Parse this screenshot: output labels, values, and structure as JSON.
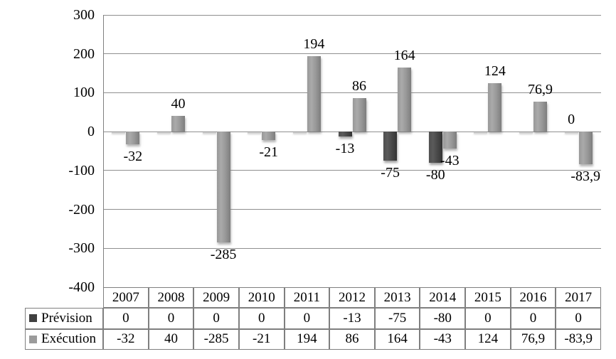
{
  "chart_data": {
    "type": "bar",
    "title": "",
    "xlabel": "",
    "ylabel": "",
    "categories": [
      "2007",
      "2008",
      "2009",
      "2010",
      "2011",
      "2012",
      "2013",
      "2014",
      "2015",
      "2016",
      "2017"
    ],
    "series": [
      {
        "name": "Prévision",
        "values": [
          0,
          0,
          0,
          0,
          0,
          -13,
          -75,
          -80,
          0,
          0,
          0
        ],
        "display_values": [
          "0",
          "0",
          "0",
          "0",
          "0",
          "-13",
          "-75",
          "-80",
          "0",
          "0",
          "0"
        ],
        "chart_labels": [
          null,
          null,
          null,
          null,
          null,
          "-13",
          "-75",
          "-80",
          null,
          null,
          "0"
        ]
      },
      {
        "name": "Exécution",
        "values": [
          -32,
          40,
          -285,
          -21,
          194,
          86,
          164,
          -43,
          124,
          76.9,
          -83.9
        ],
        "display_values": [
          "-32",
          "40",
          "-285",
          "-21",
          "194",
          "86",
          "164",
          "-43",
          "124",
          "76,9",
          "-83,9"
        ],
        "chart_labels": [
          "-32",
          "40",
          "-285",
          "-21",
          "194",
          "86",
          "164",
          "-43",
          "124",
          "76,9",
          "-83,9"
        ]
      }
    ],
    "ylim": [
      -400,
      300
    ],
    "ytick_interval": 100,
    "yticks": [
      "300",
      "200",
      "100",
      "0",
      "-100",
      "-200",
      "-300",
      "-400"
    ],
    "grid": "horizontal",
    "legend_position": "table-left"
  },
  "colors": {
    "prevision_bar": "#464646",
    "execution_bar": "#9c9c9c",
    "legend_swatch_prevision": "#404040",
    "legend_swatch_execution": "#9b9b9b",
    "gridline": "#8f8f8f",
    "axis_line": "#808080",
    "table_border": "#7f7f7f",
    "zero_bar_stub": "#d6d6d6",
    "text": "#000000"
  }
}
